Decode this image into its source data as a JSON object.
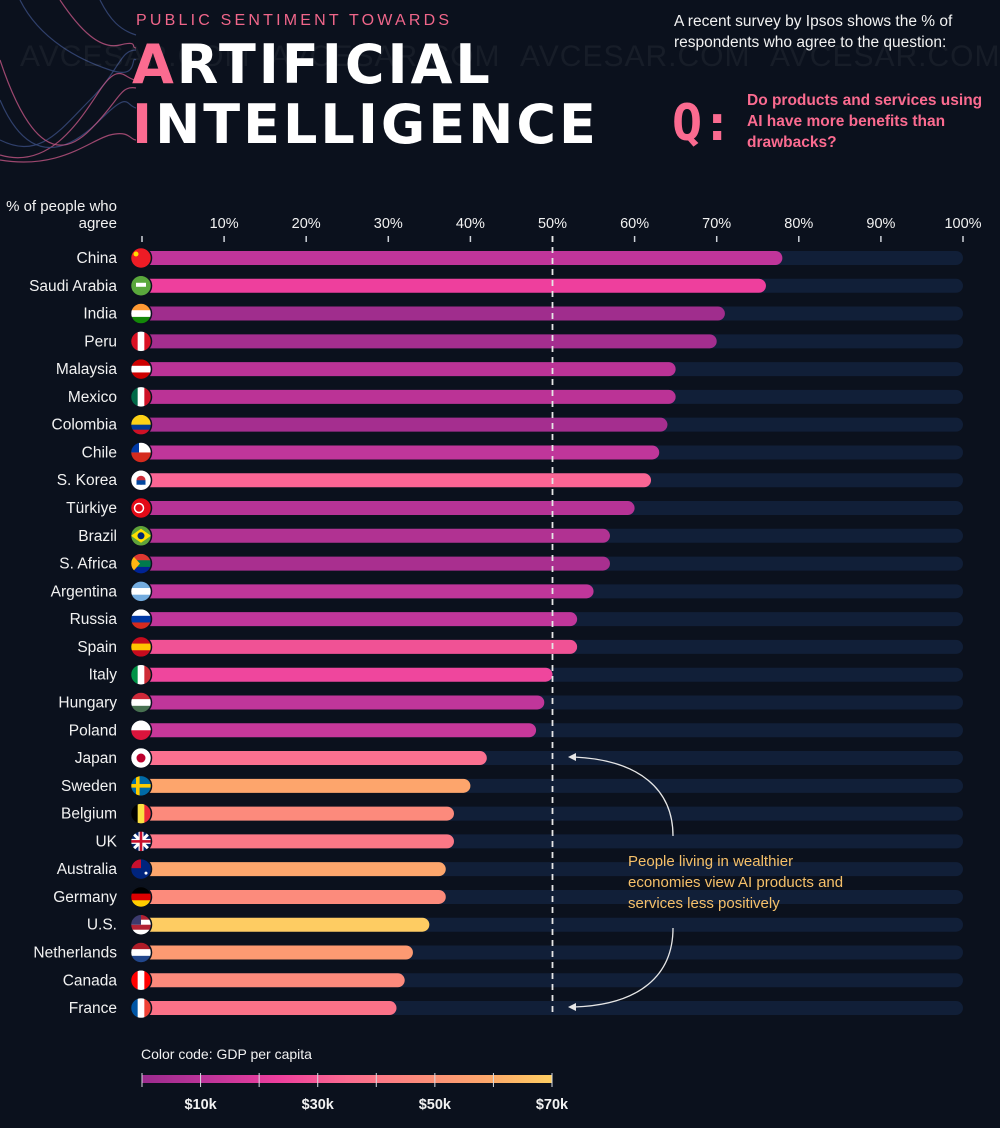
{
  "header": {
    "kicker": "PUBLIC SENTIMENT TOWARDS",
    "title_line1_first": "A",
    "title_line1_rest": "RTIFICIAL",
    "title_line2_first": "I",
    "title_line2_rest": "NTELLIGENCE",
    "intro": "A recent survey by Ipsos shows the % of respondents who agree to the question:",
    "q_label": "Q:",
    "question": "Do products and services using AI have more benefits than drawbacks?"
  },
  "watermark": "AVCESAR.COM",
  "annotation": "People living in wealthier economies view AI products and services less positively",
  "colors": {
    "background": "#0b111d",
    "track": "#111f38",
    "accent": "#fb6b90",
    "annotation": "#f5c06a"
  },
  "chart_data": {
    "type": "bar",
    "orientation": "horizontal",
    "title": "Public Sentiment Towards Artificial Intelligence",
    "ylabel": "% of people who agree",
    "xlabel": "",
    "xlim": [
      0,
      100
    ],
    "x_ticks": [
      "10%",
      "20%",
      "30%",
      "40%",
      "50%",
      "60%",
      "70%",
      "80%",
      "90%",
      "100%"
    ],
    "reference_line": 50,
    "categories": [
      "China",
      "Saudi Arabia",
      "India",
      "Peru",
      "Malaysia",
      "Mexico",
      "Colombia",
      "Chile",
      "S. Korea",
      "Türkiye",
      "Brazil",
      "S. Africa",
      "Argentina",
      "Russia",
      "Spain",
      "Italy",
      "Hungary",
      "Poland",
      "Japan",
      "Sweden",
      "Belgium",
      "UK",
      "Australia",
      "Germany",
      "U.S.",
      "Netherlands",
      "Canada",
      "France"
    ],
    "values": [
      78,
      76,
      71,
      70,
      65,
      65,
      64,
      63,
      62,
      60,
      57,
      57,
      55,
      53,
      53,
      50,
      49,
      48,
      42,
      40,
      38,
      38,
      37,
      37,
      35,
      33,
      32,
      31
    ],
    "bar_colors": [
      "#c0359a",
      "#ee3f9d",
      "#a02d8d",
      "#a42e8f",
      "#bb3396",
      "#bb3396",
      "#a52e8f",
      "#c0369a",
      "#fb6594",
      "#b73396",
      "#b13292",
      "#a92f8f",
      "#c0369a",
      "#c0369a",
      "#f05295",
      "#ef469d",
      "#c0369a",
      "#c7389a",
      "#fb7090",
      "#fda56c",
      "#fc8a7c",
      "#fb7886",
      "#fda66c",
      "#fc8b7c",
      "#fecc62",
      "#fd9a72",
      "#fc8a7c",
      "#fb7288"
    ],
    "flags": [
      "china-flag",
      "saudi-arabia-flag",
      "india-flag",
      "peru-flag",
      "malaysia-flag",
      "mexico-flag",
      "colombia-flag",
      "chile-flag",
      "south-korea-flag",
      "turkiye-flag",
      "brazil-flag",
      "south-africa-flag",
      "argentina-flag",
      "russia-flag",
      "spain-flag",
      "italy-flag",
      "hungary-flag",
      "poland-flag",
      "japan-flag",
      "sweden-flag",
      "belgium-flag",
      "uk-flag",
      "australia-flag",
      "germany-flag",
      "us-flag",
      "netherlands-flag",
      "canada-flag",
      "france-flag"
    ],
    "legend": {
      "title": "Color code: GDP per capita",
      "range": [
        0,
        70000
      ],
      "tick_labels": [
        "$10k",
        "$30k",
        "$50k",
        "$70k"
      ],
      "tick_values": [
        10000,
        30000,
        50000,
        70000
      ],
      "gradient": [
        "#9b2b8e",
        "#c0359a",
        "#ee3f9d",
        "#fb6b90",
        "#fc8a7c",
        "#fda66c",
        "#fece62"
      ]
    }
  }
}
